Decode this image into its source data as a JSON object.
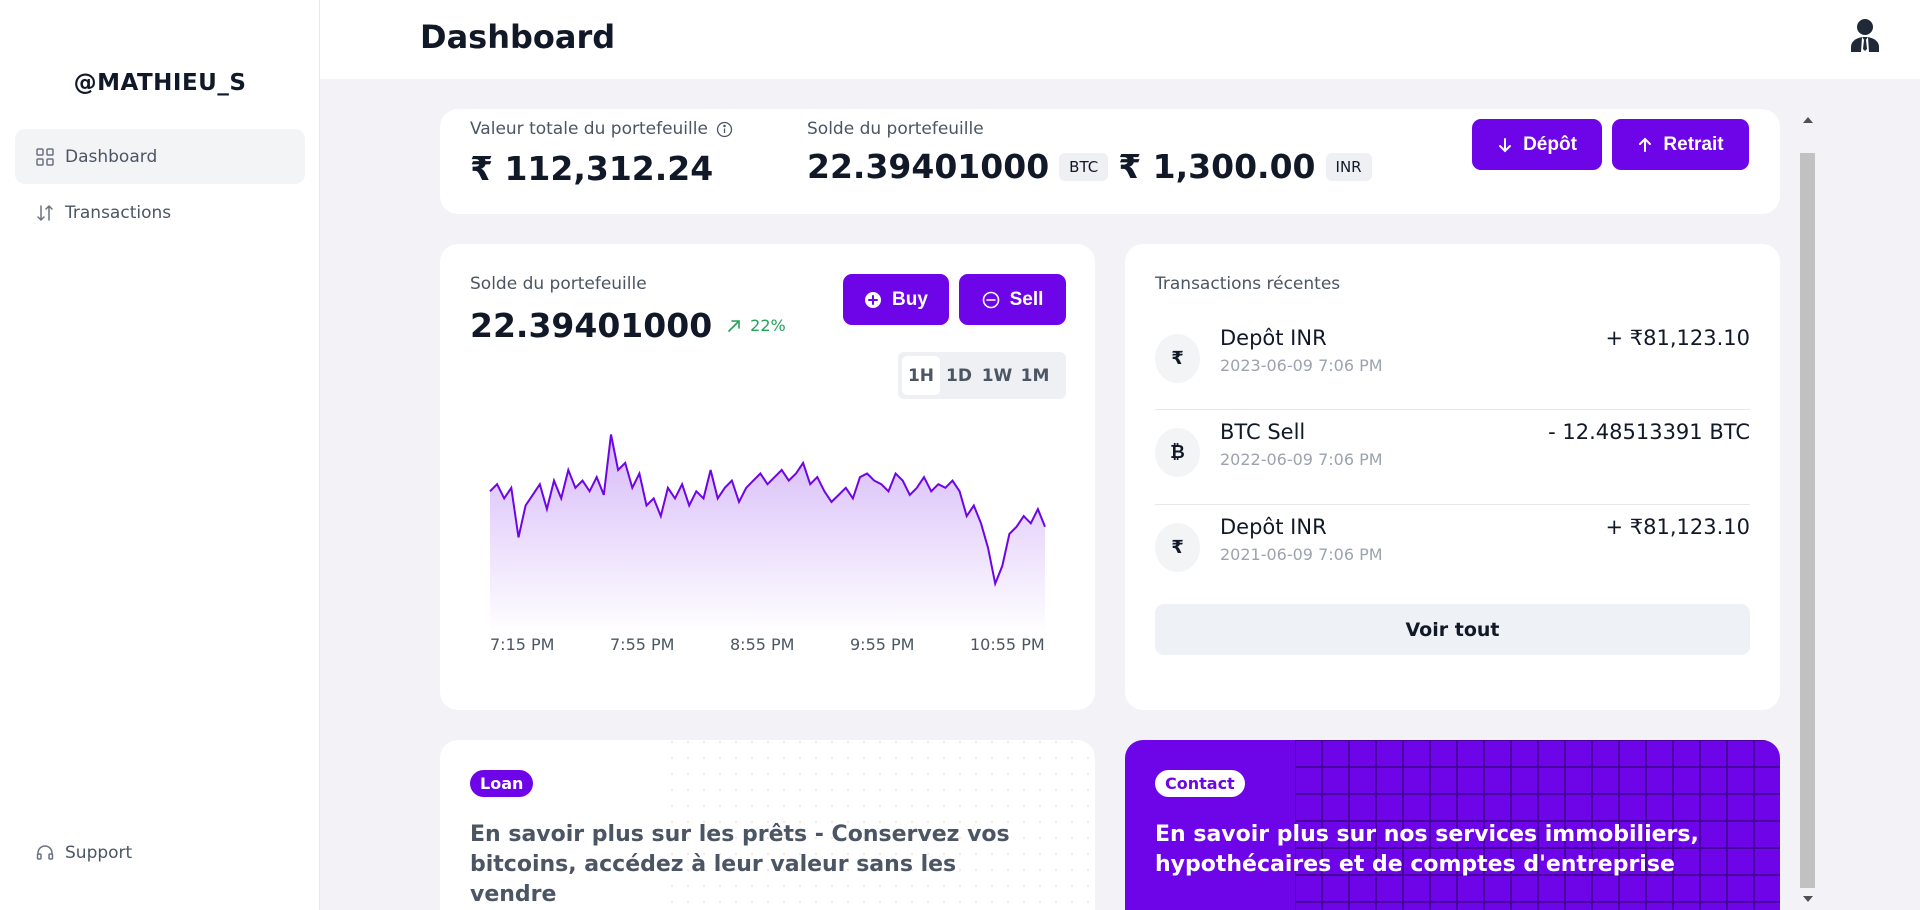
{
  "sidebar": {
    "brand": "@MATHIEU_S",
    "items": [
      {
        "label": "Dashboard",
        "icon": "grid-icon",
        "active": true
      },
      {
        "label": "Transactions",
        "icon": "arrows-up-down-icon",
        "active": false
      }
    ],
    "support": {
      "label": "Support",
      "icon": "headset-icon"
    }
  },
  "header": {
    "title": "Dashboard",
    "avatar_icon": "user-icon"
  },
  "portfolio": {
    "total_label": "Valeur totale du portefeuille",
    "total_value": "₹ 112,312.24",
    "balance_label": "Solde du portefeuille",
    "btc_value": "22.39401000",
    "btc_unit": "BTC",
    "inr_value": "₹ 1,300.00",
    "inr_unit": "INR",
    "deposit_label": "Dépôt",
    "withdraw_label": "Retrait"
  },
  "balance_chart": {
    "label": "Solde du portefeuille",
    "value": "22.39401000",
    "trend": "22%",
    "buy_label": "Buy",
    "sell_label": "Sell",
    "timeframes": [
      "1H",
      "1D",
      "1W",
      "1M"
    ],
    "active_timeframe": "1H"
  },
  "chart_data": {
    "type": "area",
    "x_ticks": [
      "7:15 PM",
      "7:55 PM",
      "8:55 PM",
      "9:55 PM",
      "10:55 PM"
    ],
    "values": [
      54,
      56,
      52,
      55,
      41,
      50,
      53,
      56,
      49,
      57,
      52,
      60,
      55,
      57,
      54,
      58,
      53,
      70,
      60,
      62,
      55,
      59,
      50,
      52,
      47,
      55,
      52,
      56,
      50,
      54,
      52,
      60,
      52,
      55,
      57,
      51,
      55,
      57,
      59,
      56,
      58,
      60,
      57,
      59,
      62,
      56,
      58,
      54,
      51,
      53,
      55,
      52,
      58,
      59,
      57,
      56,
      54,
      59,
      57,
      53,
      55,
      58,
      54,
      56,
      55,
      57,
      54,
      47,
      50,
      45,
      38,
      28,
      33,
      42,
      44,
      47,
      45,
      49,
      44
    ],
    "color": "#6d05e8"
  },
  "transactions": {
    "title": "Transactions récentes",
    "items": [
      {
        "icon": "₹",
        "name": "Depôt INR",
        "date": "2023-06-09 7:06 PM",
        "amount": "+ ₹81,123.10"
      },
      {
        "icon": "₿",
        "name": "BTC Sell",
        "date": "2022-06-09 7:06 PM",
        "amount": "- 12.48513391 BTC"
      },
      {
        "icon": "₹",
        "name": "Depôt INR",
        "date": "2021-06-09 7:06 PM",
        "amount": "+ ₹81,123.10"
      }
    ],
    "see_all": "Voir tout"
  },
  "promos": {
    "loan": {
      "badge": "Loan",
      "text": "En savoir plus sur les prêts - Conservez vos bitcoins, accédez à leur valeur sans les vendre"
    },
    "contact": {
      "badge": "Contact",
      "text": "En savoir plus sur nos services immobiliers, hypothécaires et de comptes d'entreprise"
    }
  },
  "colors": {
    "accent": "#6d05e8",
    "positive": "#22a15a"
  }
}
